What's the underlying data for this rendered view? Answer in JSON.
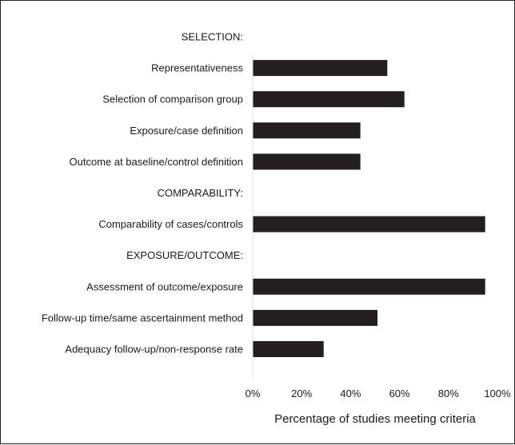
{
  "chart_data": {
    "type": "bar",
    "orientation": "horizontal",
    "categories": [
      "SELECTION:",
      "Representativeness",
      "Selection of comparison group",
      "Exposure/case definition",
      "Outcome at baseline/control definition",
      "COMPARABILITY:",
      "Comparability of cases/controls",
      "EXPOSURE/OUTCOME:",
      "Assessment of outcome/exposure",
      "Follow-up time/same ascertainment method",
      "Adequacy follow-up/non-response rate"
    ],
    "values": [
      null,
      55,
      62,
      44,
      44,
      null,
      95,
      null,
      95,
      51,
      29
    ],
    "xlabel": "Percentage of studies meeting criteria",
    "ylabel": "",
    "title": "",
    "xlim": [
      0,
      100
    ],
    "xticks": [
      "0%",
      "20%",
      "40%",
      "60%",
      "80%",
      "100%"
    ],
    "grid": false,
    "bar_color": "#231f20"
  }
}
